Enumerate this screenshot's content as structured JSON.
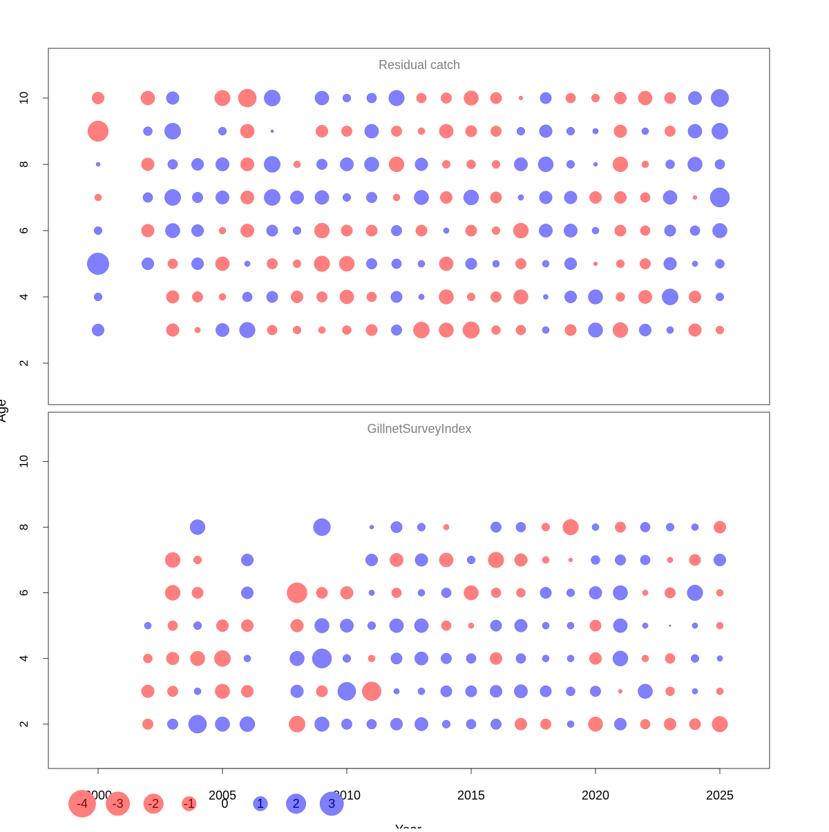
{
  "chart_data": {
    "type": "bubble",
    "xlabel": "Year",
    "ylabel": "Age",
    "xlim": [
      1998,
      2027
    ],
    "x_ticks": [
      2000,
      2005,
      2010,
      2015,
      2020,
      2025
    ],
    "years": [
      2000,
      2002,
      2003,
      2004,
      2005,
      2006,
      2007,
      2008,
      2009,
      2010,
      2011,
      2012,
      2013,
      2014,
      2015,
      2016,
      2017,
      2018,
      2019,
      2020,
      2021,
      2022,
      2023,
      2024,
      2025
    ],
    "colors": {
      "negative": "#ff7f7f",
      "negative_edge": "#ff6666",
      "positive": "#7f7fff",
      "positive_edge": "#6060e0",
      "panel_title": "#808080"
    },
    "legend": {
      "values": [
        -4,
        -3,
        -2,
        -1,
        0,
        1,
        2,
        3
      ],
      "labels": [
        "-4",
        "-3",
        "-2",
        "-1",
        "0",
        "1",
        "2",
        "3"
      ]
    },
    "panels": [
      {
        "title": "Residual catch",
        "ylim": [
          0.75,
          11.5
        ],
        "y_ticks": [
          2,
          4,
          6,
          8,
          10
        ],
        "ages": [
          3,
          4,
          5,
          6,
          7,
          8,
          9,
          10
        ],
        "residuals": [
          [
            0.9,
            0.4,
            2.9,
            0.4,
            -0.3,
            0.1,
            -2.6,
            -0.9
          ],
          [
            null,
            null,
            0.9,
            -1.0,
            0.6,
            -1.0,
            0.5,
            -1.2
          ],
          [
            -1.0,
            -1.0,
            -0.6,
            1.3,
            1.6,
            0.6,
            1.6,
            1.0
          ],
          [
            -0.2,
            -0.7,
            0.9,
            0.9,
            0.7,
            0.9,
            null,
            null
          ],
          [
            1.1,
            -0.3,
            -1.2,
            -0.3,
            1.1,
            1.1,
            0.4,
            -1.5
          ],
          [
            1.5,
            0.6,
            0.2,
            -1.1,
            -1.1,
            -1.1,
            -1.2,
            -2.0
          ],
          [
            -0.6,
            0.8,
            -0.7,
            0.8,
            1.6,
            1.6,
            0.05,
            1.6
          ],
          [
            -0.4,
            -0.9,
            -0.4,
            0.4,
            1.1,
            -0.3,
            null,
            null
          ],
          [
            -0.3,
            -0.7,
            -1.5,
            -1.4,
            1.2,
            0.7,
            -0.9,
            1.2
          ],
          [
            -0.5,
            -1.2,
            -1.4,
            -0.8,
            0.4,
            1.1,
            -0.7,
            0.4
          ],
          [
            -0.8,
            -0.6,
            0.7,
            -0.8,
            0.7,
            1.3,
            1.2,
            0.6
          ],
          [
            0.7,
            0.8,
            0.6,
            0.7,
            -0.3,
            -1.4,
            -0.7,
            1.5
          ],
          [
            -1.6,
            0.2,
            0.3,
            -0.8,
            1.3,
            1.0,
            -0.3,
            -0.6
          ],
          [
            -1.3,
            -1.3,
            -1.2,
            0.2,
            -0.9,
            -0.4,
            -1.2,
            -0.7
          ],
          [
            -1.7,
            -0.4,
            0.8,
            -0.8,
            1.4,
            -0.5,
            -0.8,
            -1.3
          ],
          [
            -0.5,
            -0.7,
            0.3,
            -0.4,
            -0.8,
            -0.4,
            -0.7,
            -0.8
          ],
          [
            -0.6,
            -1.3,
            -0.7,
            -1.4,
            0.2,
            1.1,
            0.4,
            -0.1
          ],
          [
            0.3,
            0.15,
            0.3,
            1.1,
            1.0,
            1.4,
            1.0,
            0.8
          ],
          [
            -0.8,
            0.9,
            0.9,
            1.1,
            1.0,
            0.4,
            0.4,
            -0.6
          ],
          [
            1.3,
            1.3,
            -0.1,
            0.3,
            -0.9,
            0.1,
            0.2,
            -0.4
          ],
          [
            -1.4,
            -0.5,
            -0.4,
            -0.8,
            -0.9,
            -1.4,
            -1.0,
            -0.9
          ],
          [
            0.9,
            -1.1,
            -0.7,
            -0.6,
            -0.6,
            -0.3,
            0.3,
            -1.2
          ],
          [
            0.3,
            1.6,
            1.0,
            0.8,
            1.2,
            0.5,
            -0.7,
            -0.8
          ],
          [
            -1.0,
            -0.9,
            0.2,
            0.6,
            -0.1,
            1.3,
            1.2,
            1.1
          ],
          [
            -0.4,
            0.4,
            0.5,
            1.3,
            2.3,
            0.6,
            1.6,
            1.9
          ]
        ]
      },
      {
        "title": "GillnetSurveyIndex",
        "ylim": [
          0.65,
          11.5
        ],
        "y_ticks": [
          2,
          4,
          6,
          8,
          10
        ],
        "ages": [
          2,
          3,
          4,
          5,
          6,
          7,
          8
        ],
        "residuals": [
          [
            null,
            null,
            null,
            null,
            null,
            null,
            null
          ],
          [
            -0.7,
            -1.0,
            -0.5,
            0.3,
            null,
            null,
            null
          ],
          [
            0.7,
            -0.7,
            -1.0,
            -0.6,
            -1.4,
            -1.4,
            null
          ],
          [
            2.0,
            0.3,
            -1.3,
            0.4,
            -0.8,
            -0.4,
            1.4
          ],
          [
            1.3,
            -1.3,
            -1.6,
            -0.9,
            null,
            null,
            null
          ],
          [
            1.4,
            -0.9,
            0.3,
            -0.9,
            0.9,
            0.9,
            null
          ],
          [
            null,
            null,
            null,
            null,
            null,
            null,
            null
          ],
          [
            -1.6,
            1.0,
            1.3,
            -1.0,
            -2.5,
            null,
            null
          ],
          [
            1.3,
            -0.8,
            2.3,
            1.3,
            -0.8,
            null,
            1.8
          ],
          [
            0.7,
            2.0,
            0.4,
            1.1,
            -1.0,
            null,
            null
          ],
          [
            0.6,
            -2.2,
            -0.3,
            0.4,
            0.2,
            0.9,
            0.1
          ],
          [
            0.9,
            0.2,
            0.8,
            1.2,
            -0.6,
            -1.1,
            0.8
          ],
          [
            1.1,
            0.3,
            1.1,
            1.2,
            0.3,
            1.0,
            0.4
          ],
          [
            0.4,
            0.8,
            0.7,
            -0.6,
            0.6,
            -1.2,
            -0.2
          ],
          [
            0.6,
            0.8,
            0.6,
            -0.2,
            -1.3,
            0.4,
            null
          ],
          [
            0.7,
            0.9,
            -0.9,
            0.8,
            -0.6,
            -1.5,
            0.7
          ],
          [
            -0.9,
            1.1,
            0.6,
            1.0,
            -0.5,
            -1.0,
            0.6
          ],
          [
            -0.7,
            0.8,
            0.3,
            0.3,
            0.8,
            -0.3,
            -0.4
          ],
          [
            0.3,
            0.5,
            0.3,
            0.3,
            0.4,
            -0.1,
            -1.5
          ],
          [
            -1.3,
            0.7,
            -0.9,
            -0.8,
            1.0,
            0.5,
            0.3
          ],
          [
            0.9,
            -0.1,
            1.4,
            1.2,
            1.3,
            0.7,
            -0.7
          ],
          [
            -0.6,
            1.3,
            -0.3,
            0.2,
            -0.2,
            0.6,
            0.6
          ],
          [
            -0.9,
            -0.5,
            -0.6,
            0.02,
            -0.7,
            -0.2,
            0.4
          ],
          [
            -0.8,
            0.2,
            0.4,
            0.2,
            1.5,
            -0.8,
            0.3
          ],
          [
            -1.5,
            -0.3,
            0.2,
            -0.3,
            -0.3,
            0.9,
            -0.9
          ]
        ]
      }
    ]
  }
}
